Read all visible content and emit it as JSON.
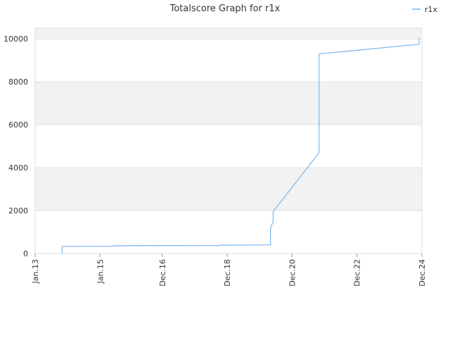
{
  "chart_data": {
    "type": "line",
    "title": "Totalscore Graph for r1x",
    "x": [
      "2013-11",
      "2013-11",
      "2015-06",
      "2015-06",
      "2018-09",
      "2018-09",
      "2020-04",
      "2020-04",
      "2020-05",
      "2020-05",
      "2021-10",
      "2021-10",
      "2024-11",
      "2024-11"
    ],
    "series": [
      {
        "name": "r1x",
        "color": "#7cb5ec",
        "values": [
          0,
          330,
          340,
          360,
          370,
          390,
          400,
          1150,
          1500,
          1950,
          4700,
          9300,
          9750,
          10050
        ]
      }
    ],
    "xlim": [
      "2013-01",
      "2024-12"
    ],
    "xticks": [
      {
        "value": "2013-01",
        "label": "Jan.13"
      },
      {
        "value": "2015-01",
        "label": "Jan.15"
      },
      {
        "value": "2016-12",
        "label": "Dec.16"
      },
      {
        "value": "2018-12",
        "label": "Dec.18"
      },
      {
        "value": "2020-12",
        "label": "Dec.20"
      },
      {
        "value": "2022-12",
        "label": "Dec.22"
      },
      {
        "value": "2024-12",
        "label": "Dec.24"
      }
    ],
    "ylim": [
      0,
      10500
    ],
    "yticks": [
      0,
      2000,
      4000,
      6000,
      8000,
      10000
    ],
    "grid": true,
    "legend": "top-right"
  }
}
